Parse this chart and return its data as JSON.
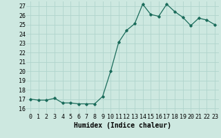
{
  "x": [
    0,
    1,
    2,
    3,
    4,
    5,
    6,
    7,
    8,
    9,
    10,
    11,
    12,
    13,
    14,
    15,
    16,
    17,
    18,
    19,
    20,
    21,
    22,
    23
  ],
  "y": [
    17.0,
    16.9,
    16.9,
    17.1,
    16.6,
    16.6,
    16.5,
    16.5,
    16.5,
    17.3,
    20.0,
    23.1,
    24.4,
    25.1,
    27.2,
    26.1,
    25.9,
    27.2,
    26.4,
    25.8,
    24.9,
    25.7,
    25.5,
    25.0
  ],
  "line_color": "#1a6b5a",
  "marker": "D",
  "marker_size": 1.8,
  "linewidth": 0.9,
  "xlabel": "Humidex (Indice chaleur)",
  "ylabel_ticks": [
    16,
    17,
    18,
    19,
    20,
    21,
    22,
    23,
    24,
    25,
    26,
    27
  ],
  "xlim": [
    -0.5,
    23.5
  ],
  "ylim": [
    15.5,
    27.5
  ],
  "bg_color": "#cde8e0",
  "grid_color": "#b0d4cc",
  "tick_fontsize": 6,
  "xlabel_fontsize": 7
}
